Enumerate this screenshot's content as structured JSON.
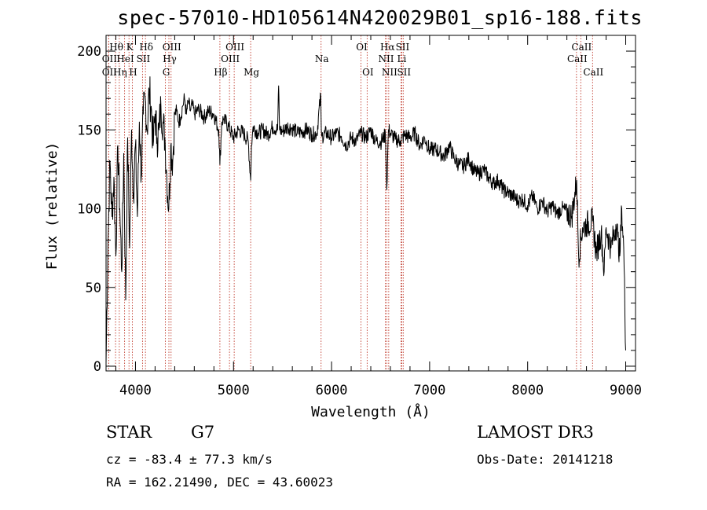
{
  "chart_data": {
    "type": "line",
    "title": "spec-57010-HD105614N420029B01_sp16-188.fits",
    "xlabel": "Wavelength (Å)",
    "ylabel": "Flux (relative)",
    "xlim": [
      3700,
      9100
    ],
    "ylim": [
      -3,
      210
    ],
    "xticks": [
      4000,
      5000,
      6000,
      7000,
      8000,
      9000
    ],
    "yticks": [
      0,
      50,
      100,
      150,
      200
    ],
    "series": [
      {
        "name": "flux",
        "x": [
          3700,
          3720,
          3740,
          3760,
          3780,
          3800,
          3820,
          3840,
          3860,
          3880,
          3900,
          3920,
          3940,
          3960,
          3980,
          4000,
          4020,
          4040,
          4060,
          4080,
          4100,
          4120,
          4140,
          4160,
          4180,
          4200,
          4220,
          4240,
          4260,
          4280,
          4300,
          4320,
          4340,
          4360,
          4380,
          4400,
          4420,
          4440,
          4460,
          4480,
          4500,
          4520,
          4540,
          4560,
          4580,
          4600,
          4650,
          4700,
          4750,
          4800,
          4850,
          4861,
          4880,
          4900,
          4950,
          5000,
          5050,
          5100,
          5150,
          5175,
          5183,
          5200,
          5250,
          5300,
          5350,
          5400,
          5450,
          5460,
          5470,
          5500,
          5550,
          5600,
          5650,
          5700,
          5750,
          5800,
          5850,
          5890,
          5895,
          5900,
          5950,
          6000,
          6050,
          6100,
          6150,
          6200,
          6250,
          6300,
          6350,
          6400,
          6450,
          6500,
          6550,
          6563,
          6580,
          6600,
          6650,
          6700,
          6750,
          6800,
          6850,
          6900,
          6950,
          7000,
          7050,
          7100,
          7150,
          7200,
          7250,
          7300,
          7350,
          7400,
          7450,
          7500,
          7550,
          7600,
          7650,
          7700,
          7750,
          7800,
          7850,
          7900,
          7950,
          8000,
          8050,
          8100,
          8150,
          8200,
          8250,
          8300,
          8350,
          8400,
          8450,
          8500,
          8520,
          8542,
          8560,
          8600,
          8662,
          8700,
          8750,
          8780,
          8800,
          8850,
          8900,
          8920,
          8940,
          8960,
          8980,
          9000
        ],
        "y": [
          2,
          80,
          130,
          95,
          120,
          70,
          140,
          100,
          60,
          135,
          42,
          145,
          75,
          150,
          110,
          140,
          95,
          155,
          120,
          160,
          170,
          150,
          175,
          165,
          140,
          160,
          145,
          150,
          165,
          155,
          145,
          120,
          100,
          140,
          130,
          160,
          162,
          155,
          158,
          165,
          170,
          160,
          168,
          162,
          166,
          160,
          163,
          158,
          162,
          160,
          150,
          128,
          155,
          157,
          152,
          145,
          150,
          148,
          143,
          118,
          140,
          152,
          148,
          150,
          147,
          152,
          150,
          178,
          150,
          149,
          152,
          151,
          148,
          149,
          150,
          147,
          148,
          172,
          150,
          146,
          148,
          145,
          148,
          146,
          140,
          145,
          143,
          148,
          145,
          150,
          143,
          142,
          147,
          112,
          150,
          148,
          144,
          143,
          147,
          145,
          148,
          140,
          145,
          137,
          138,
          136,
          133,
          140,
          132,
          128,
          127,
          132,
          124,
          122,
          125,
          120,
          116,
          118,
          112,
          110,
          108,
          105,
          106,
          102,
          108,
          100,
          105,
          98,
          102,
          97,
          100,
          98,
          95,
          118,
          70,
          80,
          88,
          90,
          92,
          72,
          85,
          60,
          88,
          75,
          90,
          82,
          70,
          100,
          75,
          10
        ]
      }
    ],
    "lines": [
      {
        "label": "OII",
        "wavelength": 3727,
        "row": 1
      },
      {
        "label": "OII",
        "wavelength": 3727,
        "row": 2
      },
      {
        "label": "Hθ",
        "wavelength": 3797,
        "row": 0
      },
      {
        "label": "Hη",
        "wavelength": 3835,
        "row": 2
      },
      {
        "label": "HeI",
        "wavelength": 3889,
        "row": 1
      },
      {
        "label": "K",
        "wavelength": 3934,
        "row": 0
      },
      {
        "label": "H",
        "wavelength": 3968,
        "row": 2
      },
      {
        "label": "SII",
        "wavelength": 4072,
        "row": 1
      },
      {
        "label": "Hδ",
        "wavelength": 4102,
        "row": 0
      },
      {
        "label": "G",
        "wavelength": 4305,
        "row": 2
      },
      {
        "label": "Hγ",
        "wavelength": 4341,
        "row": 1
      },
      {
        "label": "OIII",
        "wavelength": 4363,
        "row": 0
      },
      {
        "label": "Hβ",
        "wavelength": 4861,
        "row": 2
      },
      {
        "label": "OIII",
        "wavelength": 4959,
        "row": 1
      },
      {
        "label": "OIII",
        "wavelength": 5007,
        "row": 0
      },
      {
        "label": "Mg",
        "wavelength": 5175,
        "row": 2
      },
      {
        "label": "Na",
        "wavelength": 5893,
        "row": 1
      },
      {
        "label": "OI",
        "wavelength": 6300,
        "row": 0
      },
      {
        "label": "OI",
        "wavelength": 6363,
        "row": 2
      },
      {
        "label": "NII",
        "wavelength": 6548,
        "row": 1
      },
      {
        "label": "Hα",
        "wavelength": 6563,
        "row": 0
      },
      {
        "label": "NII",
        "wavelength": 6583,
        "row": 2
      },
      {
        "label": "Li",
        "wavelength": 6708,
        "row": 1
      },
      {
        "label": "SII",
        "wavelength": 6716,
        "row": 0
      },
      {
        "label": "SII",
        "wavelength": 6731,
        "row": 2
      },
      {
        "label": "CaII",
        "wavelength": 8498,
        "row": 1
      },
      {
        "label": "CaII",
        "wavelength": 8542,
        "row": 0
      },
      {
        "label": "CaII",
        "wavelength": 8662,
        "row": 2
      }
    ]
  },
  "info": {
    "object_class": "STAR",
    "subclass": "G7",
    "survey": "LAMOST DR3",
    "redshift": "cz = -83.4 ± 77.3 km/s",
    "obs_date": "Obs-Date: 20141218",
    "coords": "RA = 162.21490, DEC =  43.60023"
  }
}
